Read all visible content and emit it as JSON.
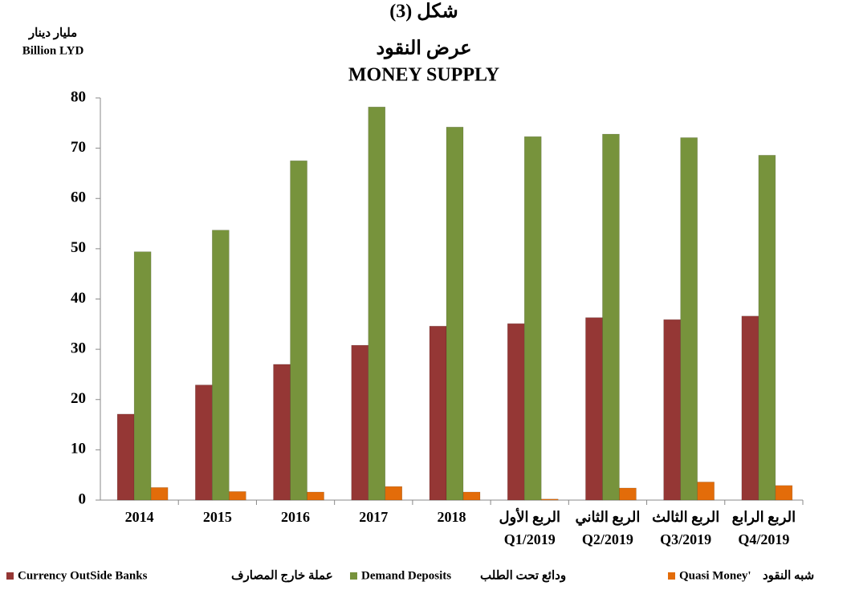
{
  "chart_data": {
    "type": "bar",
    "title": [
      "شكل (3)",
      "عرض النقود",
      "MONEY SUPPLY"
    ],
    "unit_label": [
      "مليار دينار",
      "Billion LYD"
    ],
    "categories": [
      [
        "2014"
      ],
      [
        "2015"
      ],
      [
        "2016"
      ],
      [
        "2017"
      ],
      [
        "2018"
      ],
      [
        "الربع الأول",
        "Q1/2019"
      ],
      [
        "الربع الثاني",
        "Q2/2019"
      ],
      [
        "الربع الثالث",
        "Q3/2019"
      ],
      [
        "الربع الرابع",
        "Q4/2019"
      ]
    ],
    "series": [
      {
        "name": "Currency OutSide Banks",
        "name_ar": "عملة خارج المصارف",
        "color": "#953735",
        "values": [
          17.1,
          22.9,
          27.0,
          30.8,
          34.6,
          35.1,
          36.3,
          35.9,
          36.6
        ]
      },
      {
        "name": "Demand Deposits",
        "name_ar": "ودائع تحت الطلب",
        "color": "#77933c",
        "values": [
          49.4,
          53.7,
          67.5,
          78.2,
          74.2,
          72.3,
          72.8,
          72.1,
          68.6
        ]
      },
      {
        "name": "Quasi Money'",
        "name_ar": "شبه النقود",
        "color": "#e36c09",
        "values": [
          2.5,
          1.7,
          1.6,
          2.7,
          1.6,
          0.2,
          2.4,
          3.6,
          2.9
        ]
      }
    ],
    "ylim": [
      0,
      80
    ],
    "yticks": [
      0,
      10,
      20,
      30,
      40,
      50,
      60,
      70,
      80
    ],
    "grid": false,
    "legend": "bottom"
  }
}
